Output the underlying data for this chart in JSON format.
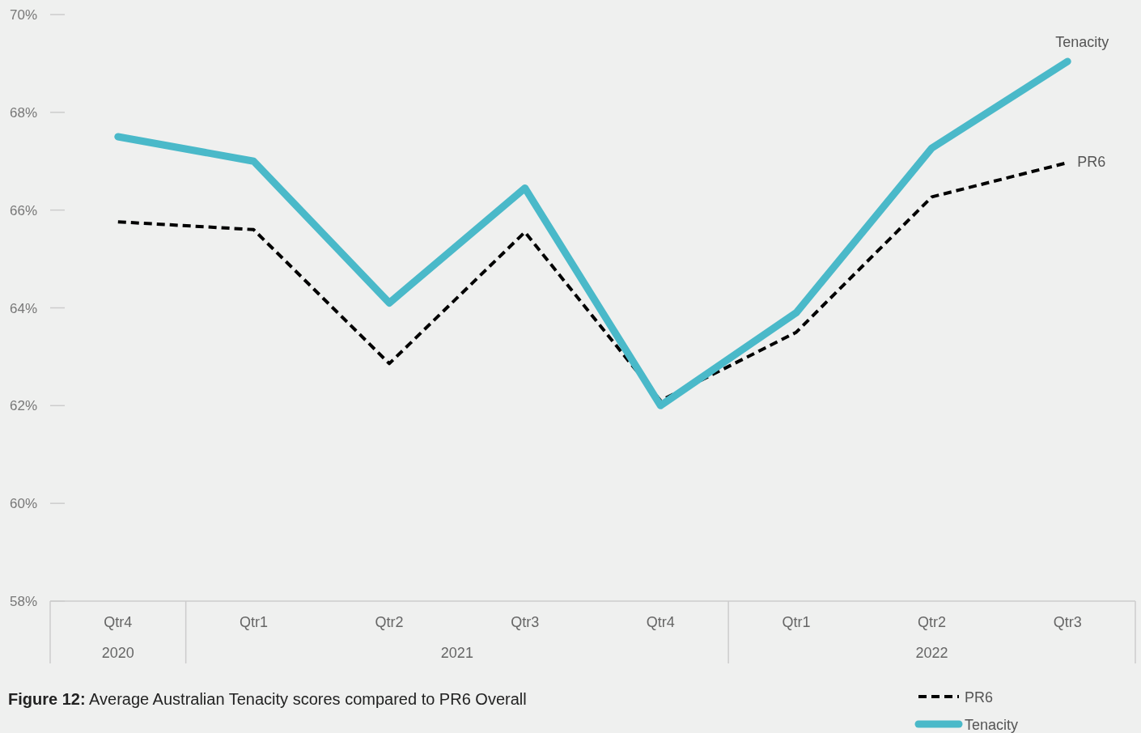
{
  "chart_data": {
    "type": "line",
    "title": "Figure 12: Average Australian Tenacity scores compared to PR6 Overall",
    "categories": [
      "Qtr4",
      "Qtr1",
      "Qtr2",
      "Qtr3",
      "Qtr4",
      "Qtr1",
      "Qtr2",
      "Qtr3"
    ],
    "annotations": [
      "2020",
      "2021",
      "2022"
    ],
    "series": [
      {
        "name": "PR6",
        "color": "#000000",
        "line_style": "dashed",
        "values": [
          65.76,
          65.6,
          62.86,
          65.55,
          62.1,
          63.5,
          66.27,
          66.97
        ]
      },
      {
        "name": "Tenacity",
        "color": "#4ab9c9",
        "line_style": "solid",
        "values": [
          67.5,
          67.0,
          64.1,
          66.45,
          62.0,
          63.9,
          67.27,
          69.04
        ]
      }
    ],
    "ylim": [
      58,
      70
    ],
    "yticks": [
      {
        "value": 58,
        "label": "58%"
      },
      {
        "value": 60,
        "label": "60%"
      },
      {
        "value": 62,
        "label": "62%"
      },
      {
        "value": 64,
        "label": "64%"
      },
      {
        "value": 66,
        "label": "66%"
      },
      {
        "value": 68,
        "label": "68%"
      },
      {
        "value": 70,
        "label": "70%"
      }
    ],
    "grid": false,
    "legend": "bottom right"
  }
}
